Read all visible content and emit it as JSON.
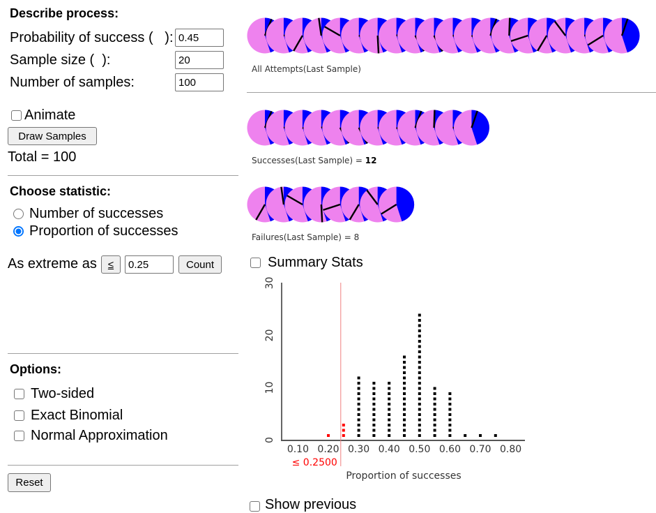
{
  "left": {
    "describe": {
      "heading": "Describe process:",
      "prob_label": "Probability of success (   ):",
      "prob_value": "0.45",
      "size_label": "Sample size (  ):",
      "size_value": "20",
      "nsamples_label": "Number of samples:",
      "nsamples_value": "100"
    },
    "animate_label": "Animate",
    "draw_button": "Draw Samples",
    "total": "Total = 100",
    "statistic": {
      "heading": "Choose statistic:",
      "options": [
        "Number of successes",
        "Proportion of successes"
      ],
      "selected": 1
    },
    "extreme": {
      "label": "As extreme as",
      "op_button": "≤",
      "value": "0.25",
      "count_button": "Count"
    },
    "options": {
      "heading": "Options:",
      "items": [
        "Two-sided",
        "Exact Binomial",
        "Normal Approximation"
      ]
    },
    "reset_button": "Reset"
  },
  "right": {
    "colors": {
      "success": "#0000ff",
      "failure": "#ee82ee",
      "spinner": "#000000",
      "cutoff": "#ff0000"
    },
    "pies": {
      "p_success": 0.45,
      "rows": [
        {
          "caption": "All Attempts(Last Sample)",
          "angles": [
            22,
            80,
            210,
            352,
            300,
            110,
            177,
            70,
            150,
            152,
            95,
            120,
            20,
            2,
            252,
            211,
            323,
            85,
            238,
            19
          ]
        },
        {
          "caption": "Successes(Last Sample) = ",
          "count": "12",
          "angles": [
            22,
            80,
            110,
            70,
            150,
            152,
            95,
            120,
            20,
            2,
            85,
            19
          ]
        },
        {
          "caption": "Failures(Last Sample) = ",
          "count": "8",
          "angles": [
            210,
            352,
            300,
            177,
            252,
            211,
            323,
            238
          ]
        }
      ]
    },
    "summary_stats_label": "Summary Stats",
    "show_previous_label": "Show previous"
  },
  "chart_data": {
    "type": "bar",
    "title": "",
    "categories": [
      "0.20",
      "0.25",
      "0.30",
      "0.35",
      "0.40",
      "0.45",
      "0.50",
      "0.55",
      "0.60",
      "0.65",
      "0.70",
      "0.75"
    ],
    "values": [
      1,
      3,
      12,
      11,
      11,
      16,
      24,
      10,
      9,
      1,
      1,
      1
    ],
    "xlabel": "Proportion of successes",
    "ylabel": "",
    "x_ticks": [
      "0.10",
      "0.20",
      "0.30",
      "0.40",
      "0.50",
      "0.60",
      "0.70",
      "0.80"
    ],
    "y_ticks": [
      "0",
      "10",
      "20",
      "30"
    ],
    "xlim": [
      0.1,
      0.8
    ],
    "ylim": [
      0,
      30
    ],
    "grid": false,
    "legend": "none",
    "cutoff": {
      "value": 0.25,
      "label": "≤ 0.2500"
    },
    "highlighted_categories": [
      "0.20",
      "0.25"
    ]
  }
}
